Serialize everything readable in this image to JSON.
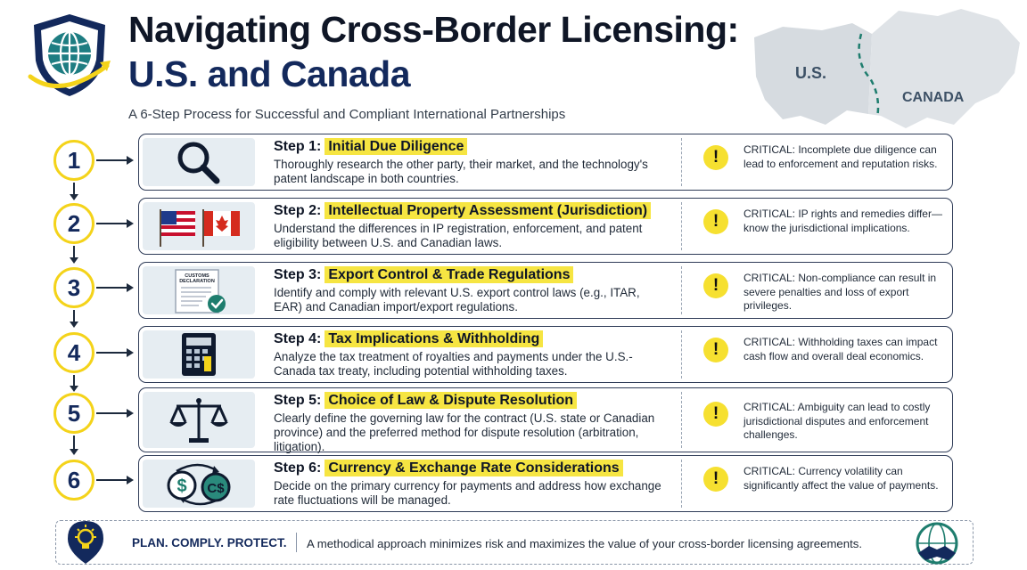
{
  "header": {
    "title_line1": "Navigating Cross-Border Licensing:",
    "title_line2": "U.S. and Canada",
    "subtitle": "A 6-Step Process for Successful and Compliant International Partnerships"
  },
  "map": {
    "us_label": "U.S.",
    "canada_label": "CANADA"
  },
  "steps": [
    {
      "number": "1",
      "label": "Step 1:",
      "title": "Initial Due Diligence",
      "description": "Thoroughly research the other party, their market, and the technology's patent landscape in both countries.",
      "critical": "CRITICAL: Incomplete due diligence can lead to enforcement and reputation risks.",
      "icon": "magnifier-icon"
    },
    {
      "number": "2",
      "label": "Step 2:",
      "title": "Intellectual Property Assessment (Jurisdiction)",
      "description": "Understand the differences in IP registration, enforcement, and patent eligibility between U.S. and Canadian laws.",
      "critical": "CRITICAL: IP rights and remedies differ—know the jurisdictional implications.",
      "icon": "flags-icon"
    },
    {
      "number": "3",
      "label": "Step 3:",
      "title": "Export Control & Trade Regulations",
      "description": "Identify and comply with relevant U.S. export control laws (e.g., ITAR, EAR) and Canadian import/export regulations.",
      "critical": "CRITICAL: Non-compliance can result in severe penalties and loss of export privileges.",
      "icon": "customs-document-icon",
      "doc_text_1": "CUSTOMS",
      "doc_text_2": "DECLARATION"
    },
    {
      "number": "4",
      "label": "Step 4:",
      "title": "Tax Implications & Withholding",
      "description": "Analyze the tax treatment of royalties and payments under the U.S.-Canada tax treaty, including potential withholding taxes.",
      "critical": "CRITICAL: Withholding taxes can impact cash flow and overall deal economics.",
      "icon": "calculator-icon"
    },
    {
      "number": "5",
      "label": "Step 5:",
      "title": "Choice of Law & Dispute Resolution",
      "description": "Clearly define the governing law for the contract (U.S. state or Canadian province) and the preferred method for dispute resolution (arbitration, litigation).",
      "critical": "CRITICAL: Ambiguity can lead to costly jurisdictional disputes and enforcement challenges.",
      "icon": "scales-icon"
    },
    {
      "number": "6",
      "label": "Step 6:",
      "title": "Currency & Exchange Rate Considerations",
      "description": "Decide on the primary currency for payments and address how exchange rate fluctuations will be managed.",
      "critical": "CRITICAL: Currency volatility can significantly affect the value of payments.",
      "icon": "currency-exchange-icon",
      "coin_1": "$",
      "coin_2": "C$"
    }
  ],
  "warning_symbol": "!",
  "footer": {
    "headline": "PLAN. COMPLY. PROTECT.",
    "text": "A methodical approach minimizes risk and maximizes the value of your cross-border licensing agreements."
  },
  "colors": {
    "navy": "#13295c",
    "yellow": "#f6e542",
    "border": "#2e3b57"
  }
}
